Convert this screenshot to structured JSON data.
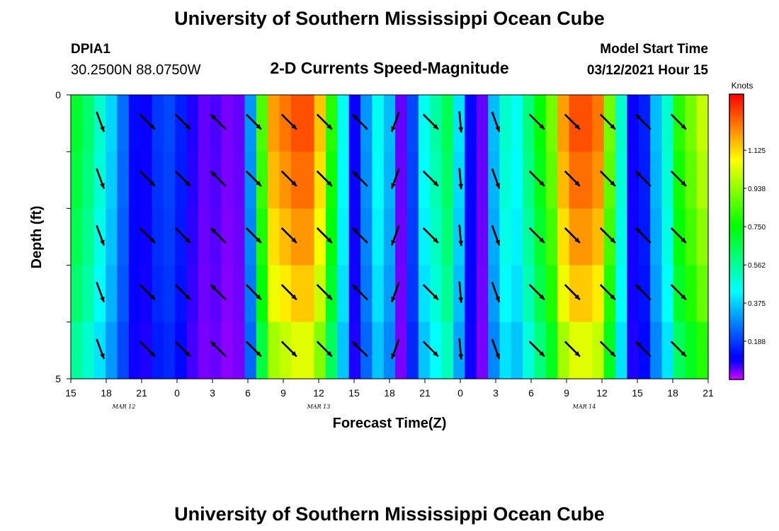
{
  "header": {
    "title_top": "University of Southern Mississippi Ocean Cube",
    "station_id": "DPIA1",
    "station_coords": "30.2500N 88.0750W",
    "subtitle": "2-D Currents Speed-Magnitude",
    "model_start_label": "Model Start Time",
    "model_start_value": "03/12/2021 Hour 15",
    "title_bottom": "University of Southern Mississippi Ocean Cube"
  },
  "chart_data": {
    "type": "heatmap",
    "title": "2-D Currents Speed-Magnitude",
    "xlabel": "Forecast Time(Z)",
    "ylabel": "Depth (ft)",
    "x_ticks": [
      "15",
      "18",
      "21",
      "0",
      "3",
      "6",
      "9",
      "12",
      "15",
      "18",
      "21",
      "0",
      "3",
      "6",
      "9",
      "12",
      "15",
      "18",
      "21"
    ],
    "x_tick_hours": [
      0,
      3,
      6,
      9,
      12,
      15,
      18,
      21,
      24,
      27,
      30,
      33,
      36,
      39,
      42,
      45,
      48,
      51,
      54
    ],
    "x_range_hours": [
      0,
      54
    ],
    "date_labels": [
      {
        "text": "MAR 12",
        "hour": 4.5
      },
      {
        "text": "MAR 13",
        "hour": 21
      },
      {
        "text": "MAR 14",
        "hour": 43.5
      }
    ],
    "y_ticks": [
      "0",
      "5"
    ],
    "y_tick_values": [
      0,
      5
    ],
    "y_range_ft": [
      0,
      5
    ],
    "depth_levels_ft": [
      0.5,
      1.5,
      2.5,
      3.5,
      4.5
    ],
    "colorbar": {
      "units": "Knots",
      "tick_labels": [
        "1.125",
        "0.938",
        "0.750",
        "0.562",
        "0.375",
        "0.188"
      ],
      "tick_values": [
        1.125,
        0.938,
        0.75,
        0.562,
        0.375,
        0.188
      ],
      "range": [
        0,
        1.4
      ]
    },
    "speed_profile_knots": [
      0.7,
      0.62,
      0.5,
      0.38,
      0.25,
      0.12,
      0.1,
      0.18,
      0.2,
      0.15,
      0.08,
      0.05,
      0.06,
      0.04,
      0.05,
      0.3,
      0.85,
      1.2,
      1.25,
      1.3,
      1.3,
      1.15,
      0.8,
      0.45,
      0.1,
      0.3,
      0.45,
      0.35,
      0.05,
      0.2,
      0.45,
      0.55,
      0.65,
      0.4,
      0.12,
      0.05,
      0.35,
      0.5,
      0.45,
      0.6,
      0.75,
      0.9,
      1.2,
      1.3,
      1.3,
      1.25,
      0.9,
      0.5,
      0.1,
      0.15,
      0.35,
      0.5,
      0.8,
      0.9,
      1.0
    ],
    "speed_depth_factor": [
      1.0,
      0.97,
      0.93,
      0.88,
      0.8
    ],
    "arrow_hours": [
      2.5,
      6.5,
      9.5,
      12.5,
      15.5,
      18.5,
      21.5,
      24.5,
      27.5,
      30.5,
      33,
      36,
      39.5,
      42.5,
      45.5,
      48.5,
      51.5
    ],
    "arrow_directions_deg": [
      160,
      135,
      135,
      315,
      135,
      135,
      135,
      315,
      200,
      135,
      175,
      160,
      135,
      135,
      135,
      315,
      135
    ]
  }
}
